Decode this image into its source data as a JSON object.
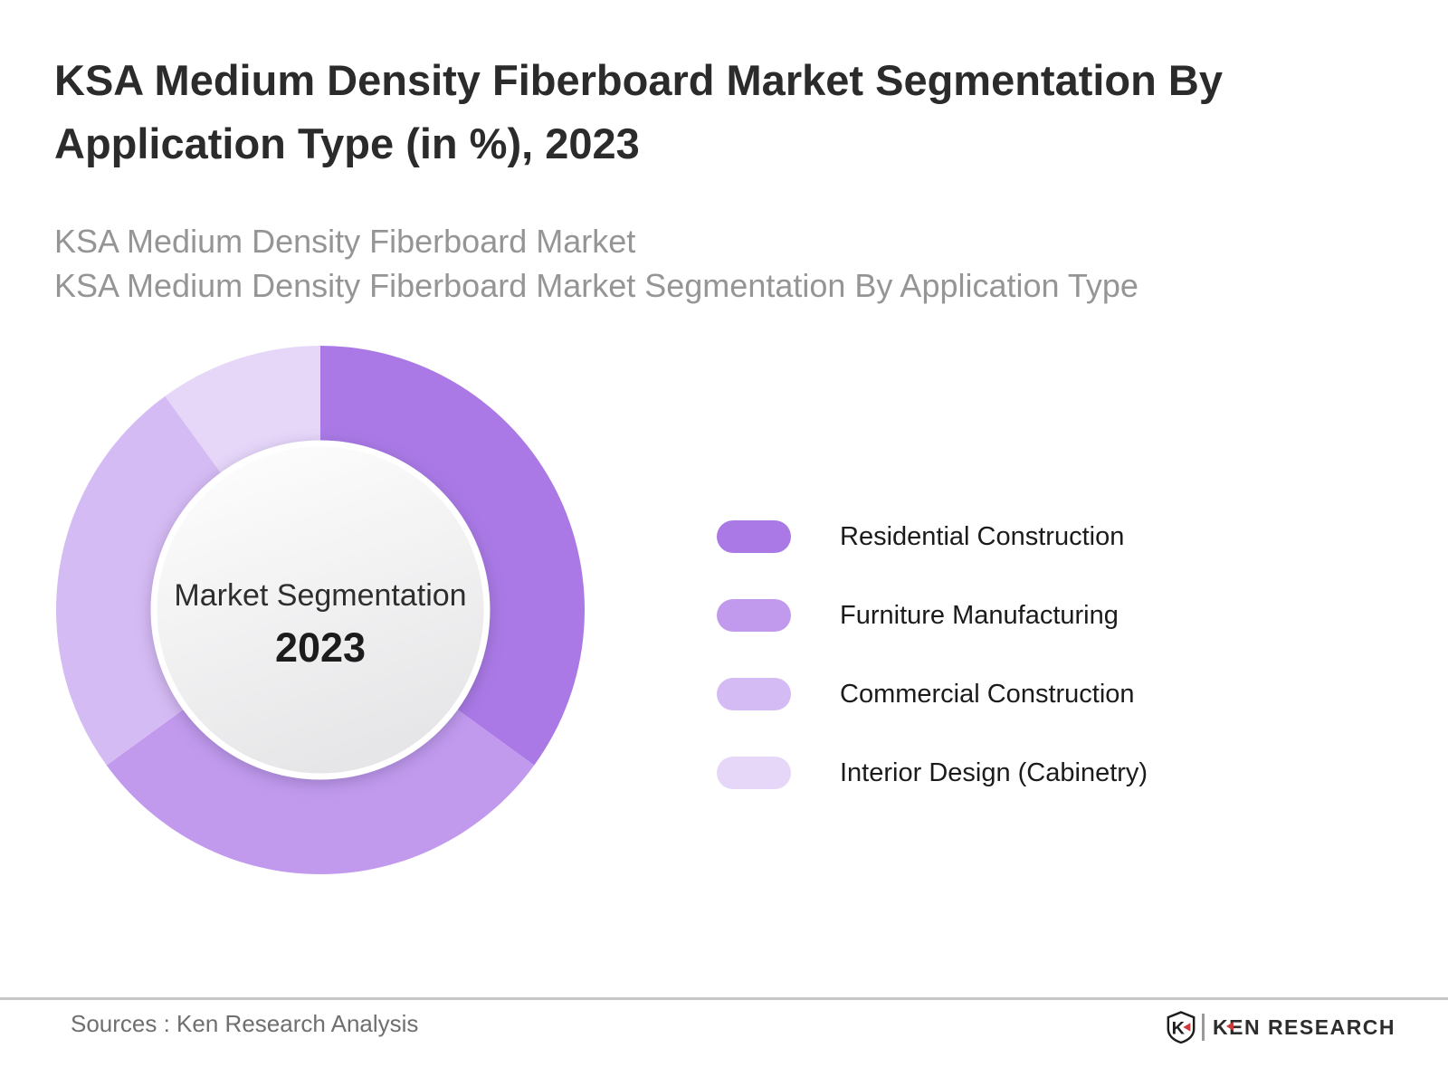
{
  "header": {
    "title_line1": "KSA Medium Density Fiberboard Market Segmentation By",
    "title_line2": "Application Type (in %), 2023",
    "subtitle_line1": "KSA Medium Density Fiberboard Market",
    "subtitle_line2": "KSA Medium Density Fiberboard Market Segmentation By Application Type"
  },
  "chart_data": {
    "type": "pie",
    "donut": true,
    "title": "KSA Medium Density Fiberboard Market Segmentation By Application Type (in %), 2023",
    "unit": "%",
    "year": "2023",
    "categories": [
      "Residential Construction",
      "Furniture Manufacturing",
      "Commercial Construction",
      "Interior Design (Cabinetry)"
    ],
    "values": [
      35,
      30,
      25,
      10
    ],
    "colors": [
      "#aa79e6",
      "#c19aee",
      "#d5bbf3",
      "#e6d7f9"
    ],
    "start_angle_deg": 0,
    "direction": "clockwise",
    "center_label": "Market Segmentation",
    "center_sublabel": "2023",
    "legend_position": "right",
    "data_labels_shown": false
  },
  "footer": {
    "sources": "Sources : Ken Research Analysis",
    "logo_monogram": "K",
    "logo_text": "KEN RESEARCH"
  }
}
